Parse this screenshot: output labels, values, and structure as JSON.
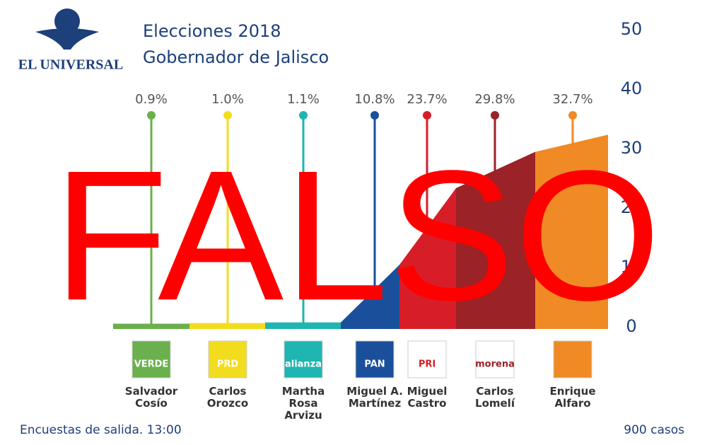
{
  "brand": "EL UNIVERSAL",
  "chart_data": {
    "type": "area",
    "title": "Elecciones 2018",
    "subtitle": "Gobernador de Jalisco",
    "categories": [
      "Salvador\nCosío",
      "Carlos\nOrozco",
      "Martha\nRosa\nArvizu",
      "Miguel A.\nMartínez",
      "Miguel\nCastro",
      "Carlos\nLomelí",
      "Enrique\nAlfaro"
    ],
    "parties": [
      "VERDE",
      "PRD",
      "alianza",
      "PAN",
      "PRI",
      "morena",
      null
    ],
    "values": [
      0.9,
      1.0,
      1.1,
      10.8,
      23.7,
      29.8,
      32.7
    ],
    "value_labels": [
      "0.9%",
      "1.0%",
      "1.1%",
      "10.8%",
      "23.7%",
      "29.8%",
      "32.7%"
    ],
    "colors": [
      "#6ab04c",
      "#f2dc1e",
      "#1fb5b0",
      "#1a4f9c",
      "#d71e28",
      "#9b2226",
      "#f08a24"
    ],
    "ylim": [
      0,
      50
    ],
    "yticks": [
      0,
      10,
      20,
      30,
      40,
      50
    ],
    "note": "Encuestas de salida. 13:00",
    "cases": "900 casos",
    "stamp": "FALSO"
  }
}
